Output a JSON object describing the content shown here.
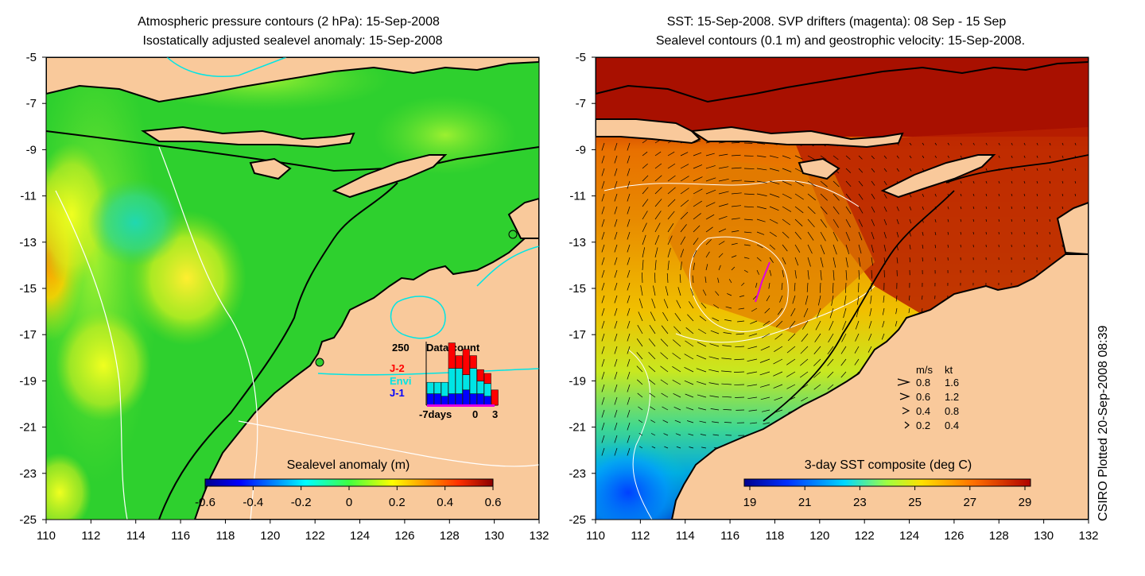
{
  "left_panel": {
    "title_line1": "Atmospheric pressure contours (2 hPa): 15-Sep-2008",
    "title_line2": "Isostatically adjusted sealevel anomaly: 15-Sep-2008",
    "colorbar_label": "Sealevel anomaly (m)",
    "colorbar_ticks": [
      "-0.6",
      "-0.4",
      "-0.2",
      "0",
      "0.2",
      "0.4",
      "0.6"
    ],
    "data_count": {
      "max_label": "250",
      "title": "Data count",
      "legend": [
        {
          "label": "J-2",
          "color": "#ff0000"
        },
        {
          "label": "Envi",
          "color": "#00e5e5"
        },
        {
          "label": "J-1",
          "color": "#0000ff"
        }
      ],
      "x_labels": [
        "-7days",
        "0",
        "3"
      ],
      "bars": [
        {
          "j1": 0.18,
          "envi": 0.18,
          "j2": 0.0
        },
        {
          "j1": 0.18,
          "envi": 0.18,
          "j2": 0.0
        },
        {
          "j1": 0.14,
          "envi": 0.22,
          "j2": 0.0
        },
        {
          "j1": 0.18,
          "envi": 0.4,
          "j2": 0.4
        },
        {
          "j1": 0.18,
          "envi": 0.4,
          "j2": 0.2
        },
        {
          "j1": 0.24,
          "envi": 0.24,
          "j2": 0.4
        },
        {
          "j1": 0.18,
          "envi": 0.4,
          "j2": 0.2
        },
        {
          "j1": 0.18,
          "envi": 0.2,
          "j2": 0.18
        },
        {
          "j1": 0.14,
          "envi": 0.2,
          "j2": 0.16
        },
        {
          "j1": 0.0,
          "envi": 0.0,
          "j2": 0.24
        }
      ]
    }
  },
  "right_panel": {
    "title_line1": "SST: 15-Sep-2008. SVP drifters (magenta): 08 Sep - 15 Sep",
    "title_line2": "Sealevel contours (0.1 m) and geostrophic velocity: 15-Sep-2008.",
    "colorbar_label": "3-day SST composite (deg C)",
    "colorbar_ticks": [
      "19",
      "21",
      "23",
      "25",
      "27",
      "29"
    ],
    "velocity_legend": {
      "header_ms": "m/s",
      "header_kt": "kt",
      "rows": [
        {
          "ms": "0.8",
          "kt": "1.6"
        },
        {
          "ms": "0.6",
          "kt": "1.2"
        },
        {
          "ms": "0.4",
          "kt": "0.8"
        },
        {
          "ms": "0.2",
          "kt": "0.4"
        }
      ]
    }
  },
  "axes": {
    "x_ticks": [
      "110",
      "112",
      "114",
      "116",
      "118",
      "120",
      "122",
      "124",
      "126",
      "128",
      "130",
      "132"
    ],
    "y_ticks": [
      "-5",
      "-7",
      "-9",
      "-11",
      "-13",
      "-15",
      "-17",
      "-19",
      "-21",
      "-23",
      "-25"
    ],
    "lon_range": [
      110,
      132
    ],
    "lat_range": [
      -25,
      -5
    ]
  },
  "credit": "CSIRO Plotted 20-Sep-2008 08:39",
  "colors": {
    "land": "#f9c99b",
    "ocean_green": "#2ed02e",
    "pressure_contour": "#00e5e5",
    "drifter": "#e000e0"
  }
}
